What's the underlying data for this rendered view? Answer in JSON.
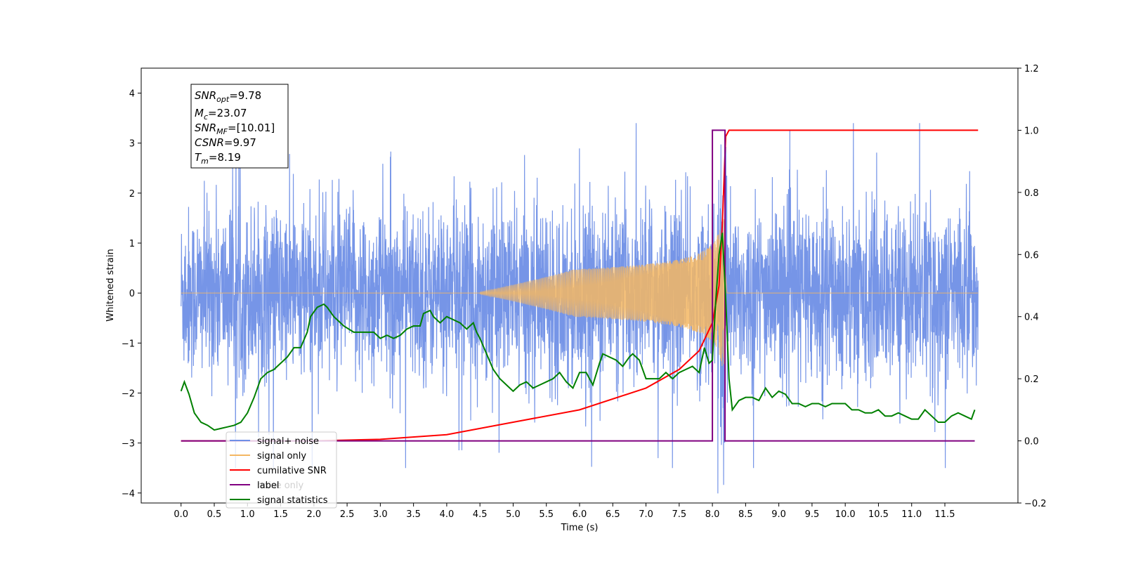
{
  "chart_data": {
    "type": "line",
    "xlabel": "Time (s)",
    "ylabel_left": "Whitened strain",
    "xlim": [
      -0.6,
      12.6
    ],
    "ylim_left": [
      -4.2,
      4.5
    ],
    "ylim_right": [
      -0.2,
      1.2
    ],
    "x_ticks": [
      "0.0",
      "0.5",
      "1.0",
      "1.5",
      "2.0",
      "2.5",
      "3.0",
      "3.5",
      "4.0",
      "4.5",
      "5.0",
      "5.5",
      "6.0",
      "6.5",
      "7.0",
      "7.5",
      "8.0",
      "8.5",
      "9.0",
      "9.5",
      "10.0",
      "10.5",
      "11.0",
      "11.5"
    ],
    "y_ticks_left": [
      "4",
      "3",
      "2",
      "1",
      "0",
      "−1",
      "−2",
      "−3",
      "−4"
    ],
    "y_ticks_right": [
      "1.2",
      "1.0",
      "0.8",
      "0.6",
      "0.4",
      "0.2",
      "0.0",
      "−0.2"
    ],
    "colors": {
      "signal_noise": "#6f8fe6",
      "signal_only": "#f4b763",
      "cumulative_snr": "#ff0000",
      "label": "#800080",
      "signal_statistics": "#008000"
    },
    "info_box": [
      {
        "base": "SNR",
        "sub": "opt",
        "value": "=9.78"
      },
      {
        "base": "M",
        "sub": "c",
        "value": "=23.07"
      },
      {
        "base": "SNR",
        "sub": "MF",
        "value": "=[10.01]"
      },
      {
        "base": "CSNR",
        "sub": "",
        "value": "=9.97"
      },
      {
        "base": "T",
        "sub": "m",
        "value": "=8.19"
      }
    ],
    "legend": [
      "signal+ noise",
      "signal only",
      "cumilative SNR",
      "label",
      "noise only",
      "signal statistics"
    ],
    "series": [
      {
        "name": "signal+ noise",
        "axis": "left",
        "description_free": true,
        "noise_amplitude_typical": 2.5,
        "x_range": [
          0.0,
          12.0
        ]
      },
      {
        "name": "signal only",
        "axis": "left",
        "chirp": {
          "t_start": 4.5,
          "t_merge": 8.19,
          "peak_amplitude": 1.5
        }
      },
      {
        "name": "cumilative SNR",
        "axis": "right",
        "x": [
          0.0,
          2.0,
          3.0,
          4.0,
          5.0,
          6.0,
          7.0,
          7.5,
          7.8,
          8.0,
          8.1,
          8.15,
          8.2,
          8.25,
          12.0
        ],
        "y": [
          0.0,
          0.0,
          0.005,
          0.02,
          0.06,
          0.1,
          0.17,
          0.23,
          0.29,
          0.38,
          0.5,
          0.7,
          0.98,
          1.0,
          1.0
        ]
      },
      {
        "name": "label",
        "axis": "right",
        "x": [
          0.0,
          8.0,
          8.0,
          8.19,
          8.19,
          11.95
        ],
        "y": [
          0.0,
          0.0,
          1.0,
          1.0,
          0.0,
          0.0
        ]
      },
      {
        "name": "signal statistics",
        "axis": "right",
        "x": [
          0.0,
          0.05,
          0.12,
          0.2,
          0.3,
          0.4,
          0.5,
          0.6,
          0.7,
          0.8,
          0.9,
          1.0,
          1.1,
          1.2,
          1.3,
          1.4,
          1.5,
          1.6,
          1.7,
          1.8,
          1.9,
          1.95,
          2.05,
          2.15,
          2.2,
          2.3,
          2.35,
          2.45,
          2.6,
          2.75,
          2.9,
          3.0,
          3.1,
          3.2,
          3.3,
          3.4,
          3.5,
          3.6,
          3.65,
          3.75,
          3.8,
          3.9,
          4.0,
          4.1,
          4.2,
          4.3,
          4.4,
          4.45,
          4.5,
          4.6,
          4.7,
          4.8,
          4.9,
          5.0,
          5.1,
          5.2,
          5.3,
          5.4,
          5.5,
          5.6,
          5.7,
          5.8,
          5.9,
          6.0,
          6.1,
          6.2,
          6.3,
          6.35,
          6.45,
          6.55,
          6.65,
          6.75,
          6.8,
          6.9,
          7.0,
          7.1,
          7.2,
          7.3,
          7.4,
          7.5,
          7.6,
          7.7,
          7.8,
          7.88,
          7.95,
          8.0,
          8.05,
          8.1,
          8.15,
          8.2,
          8.25,
          8.3,
          8.4,
          8.5,
          8.6,
          8.7,
          8.8,
          8.9,
          9.0,
          9.1,
          9.2,
          9.3,
          9.4,
          9.5,
          9.6,
          9.7,
          9.8,
          9.9,
          10.0,
          10.1,
          10.2,
          10.3,
          10.4,
          10.5,
          10.6,
          10.7,
          10.8,
          10.9,
          11.0,
          11.1,
          11.2,
          11.3,
          11.4,
          11.5,
          11.6,
          11.7,
          11.8,
          11.9,
          11.95
        ],
        "y": [
          0.16,
          0.19,
          0.15,
          0.09,
          0.06,
          0.05,
          0.035,
          0.04,
          0.045,
          0.05,
          0.06,
          0.09,
          0.14,
          0.2,
          0.22,
          0.23,
          0.25,
          0.27,
          0.3,
          0.3,
          0.35,
          0.4,
          0.43,
          0.44,
          0.43,
          0.4,
          0.39,
          0.37,
          0.35,
          0.35,
          0.35,
          0.33,
          0.34,
          0.33,
          0.34,
          0.36,
          0.37,
          0.37,
          0.41,
          0.42,
          0.4,
          0.38,
          0.4,
          0.39,
          0.38,
          0.36,
          0.38,
          0.35,
          0.33,
          0.28,
          0.23,
          0.2,
          0.18,
          0.16,
          0.18,
          0.19,
          0.17,
          0.18,
          0.19,
          0.2,
          0.22,
          0.19,
          0.17,
          0.22,
          0.22,
          0.18,
          0.25,
          0.28,
          0.27,
          0.26,
          0.24,
          0.27,
          0.28,
          0.26,
          0.2,
          0.2,
          0.2,
          0.22,
          0.2,
          0.22,
          0.23,
          0.24,
          0.22,
          0.3,
          0.25,
          0.26,
          0.45,
          0.6,
          0.67,
          0.46,
          0.2,
          0.1,
          0.13,
          0.14,
          0.14,
          0.13,
          0.17,
          0.14,
          0.16,
          0.15,
          0.12,
          0.12,
          0.11,
          0.12,
          0.12,
          0.11,
          0.12,
          0.12,
          0.12,
          0.1,
          0.1,
          0.09,
          0.09,
          0.1,
          0.08,
          0.08,
          0.09,
          0.08,
          0.07,
          0.07,
          0.1,
          0.08,
          0.06,
          0.06,
          0.08,
          0.09,
          0.08,
          0.07,
          0.1
        ]
      }
    ]
  }
}
